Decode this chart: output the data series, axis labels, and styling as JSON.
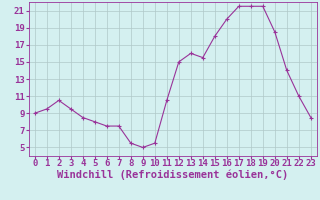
{
  "x": [
    0,
    1,
    2,
    3,
    4,
    5,
    6,
    7,
    8,
    9,
    10,
    11,
    12,
    13,
    14,
    15,
    16,
    17,
    18,
    19,
    20,
    21,
    22,
    23
  ],
  "y": [
    9,
    9.5,
    10.5,
    9.5,
    8.5,
    8,
    7.5,
    7.5,
    5.5,
    5,
    5.5,
    10.5,
    15,
    16,
    15.5,
    18,
    20,
    21.5,
    21.5,
    21.5,
    18.5,
    14,
    11,
    8.5
  ],
  "line_color": "#993399",
  "marker": "+",
  "bg_color": "#d4f0f0",
  "grid_color": "#b0c8c8",
  "xlabel": "Windchill (Refroidissement éolien,°C)",
  "ylabel": "",
  "title": "",
  "xlim": [
    -0.5,
    23.5
  ],
  "ylim": [
    4,
    22
  ],
  "yticks": [
    5,
    7,
    9,
    11,
    13,
    15,
    17,
    19,
    21
  ],
  "xticks": [
    0,
    1,
    2,
    3,
    4,
    5,
    6,
    7,
    8,
    9,
    10,
    11,
    12,
    13,
    14,
    15,
    16,
    17,
    18,
    19,
    20,
    21,
    22,
    23
  ],
  "font_color": "#993399",
  "font_size": 6.5,
  "xlabel_fontsize": 7.5
}
